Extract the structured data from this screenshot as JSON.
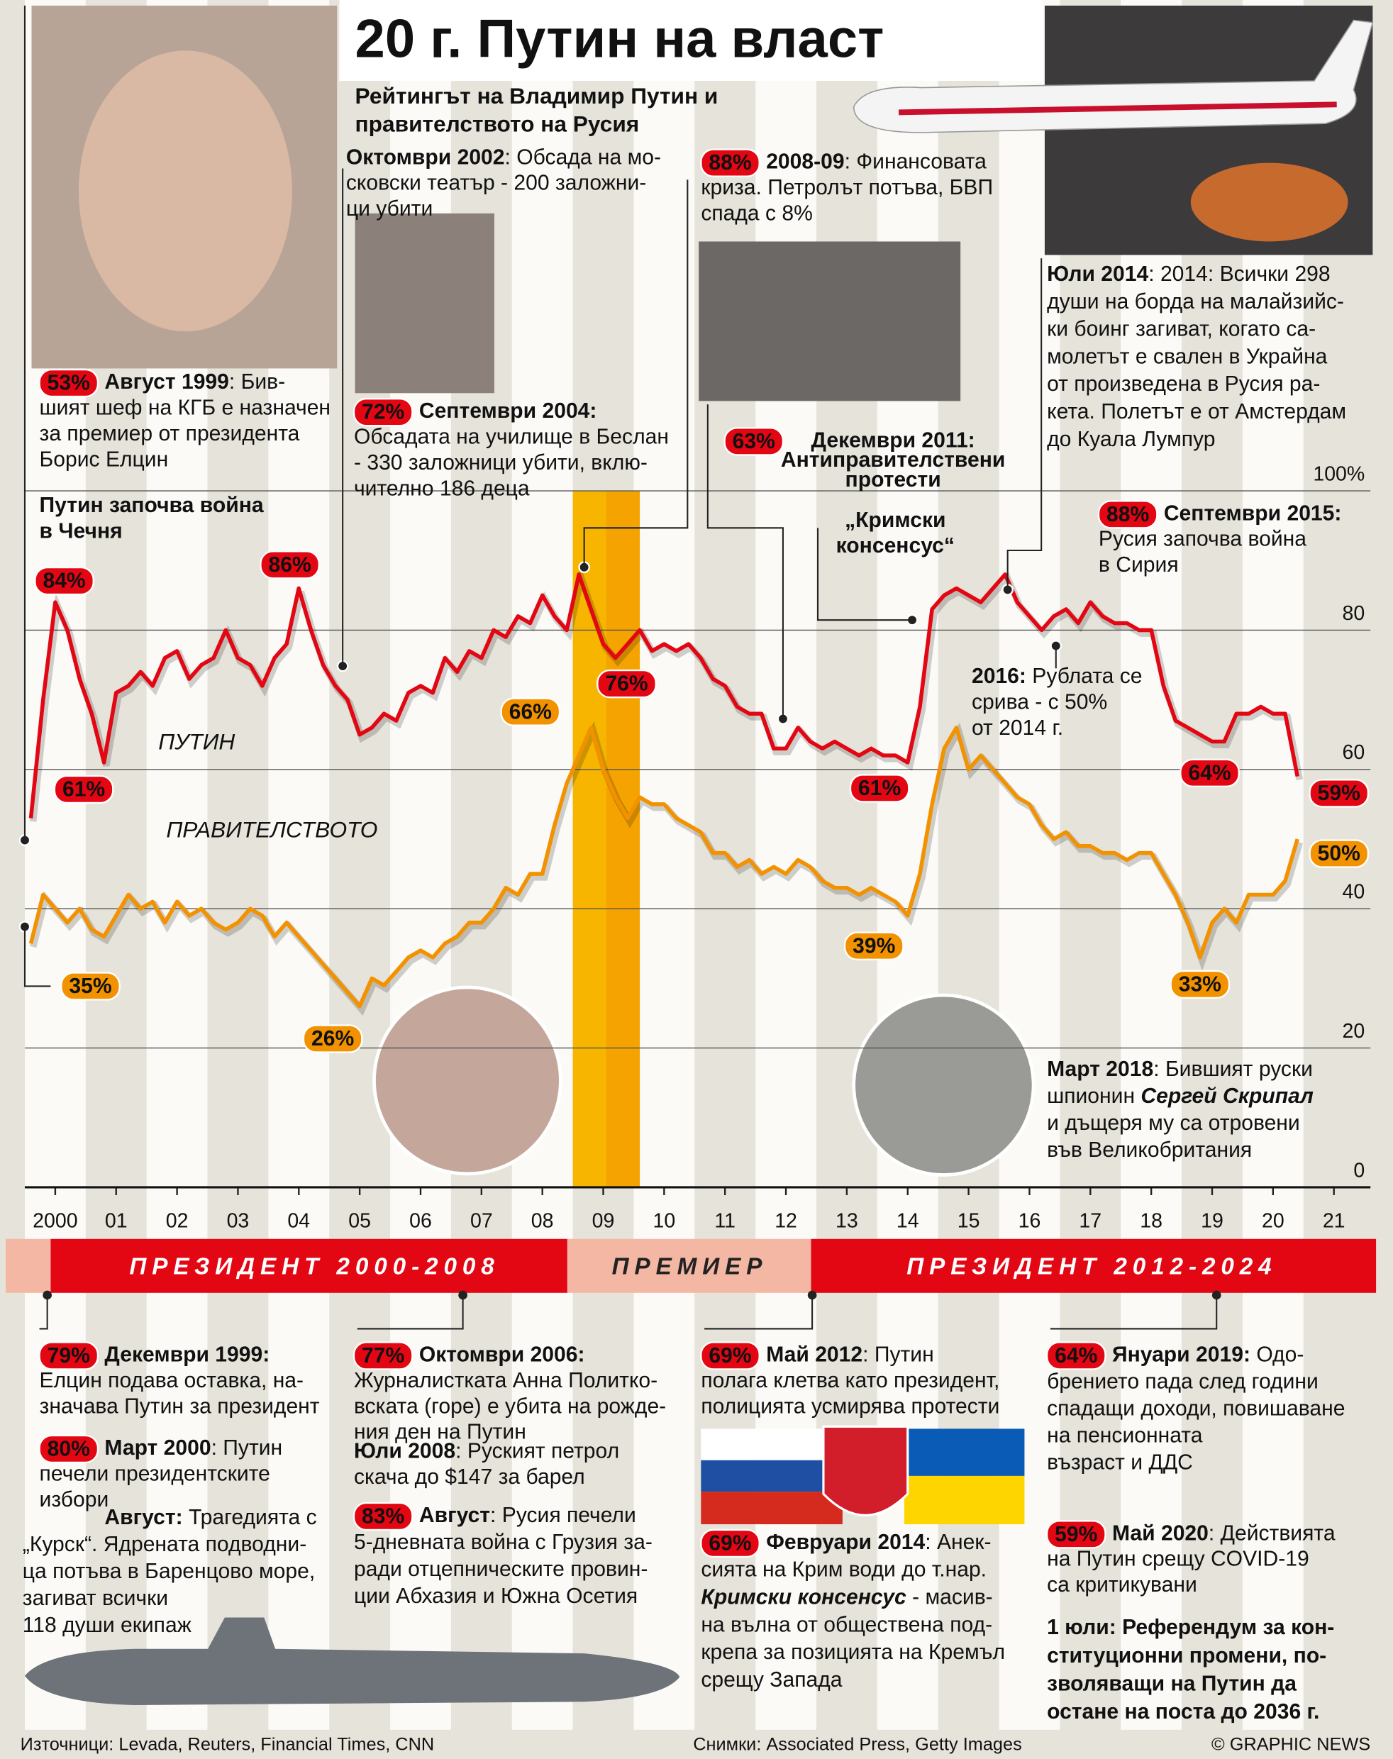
{
  "header": {
    "title": "20 г. Путин на власт",
    "subtitle": [
      "Рейтингът на Владимир Путин и",
      "правителството на Русия"
    ]
  },
  "chart_data": {
    "type": "line",
    "x": [
      1999.6,
      1999.8,
      2000.0,
      2000.2,
      2000.4,
      2000.6,
      2000.8,
      2001.0,
      2001.2,
      2001.4,
      2001.6,
      2001.8,
      2002.0,
      2002.2,
      2002.4,
      2002.6,
      2002.8,
      2003.0,
      2003.2,
      2003.4,
      2003.6,
      2003.8,
      2004.0,
      2004.2,
      2004.4,
      2004.6,
      2004.8,
      2005.0,
      2005.2,
      2005.4,
      2005.6,
      2005.8,
      2006.0,
      2006.2,
      2006.4,
      2006.6,
      2006.8,
      2007.0,
      2007.2,
      2007.4,
      2007.6,
      2007.8,
      2008.0,
      2008.2,
      2008.4,
      2008.6,
      2008.8,
      2009.0,
      2009.2,
      2009.4,
      2009.6,
      2009.8,
      2010.0,
      2010.2,
      2010.4,
      2010.6,
      2010.8,
      2011.0,
      2011.2,
      2011.4,
      2011.6,
      2011.8,
      2012.0,
      2012.2,
      2012.4,
      2012.6,
      2012.8,
      2013.0,
      2013.2,
      2013.4,
      2013.6,
      2013.8,
      2014.0,
      2014.2,
      2014.4,
      2014.6,
      2014.8,
      2015.0,
      2015.2,
      2015.4,
      2015.6,
      2015.8,
      2016.0,
      2016.2,
      2016.4,
      2016.6,
      2016.8,
      2017.0,
      2017.2,
      2017.4,
      2017.6,
      2017.8,
      2018.0,
      2018.2,
      2018.4,
      2018.6,
      2018.8,
      2019.0,
      2019.2,
      2019.4,
      2019.6,
      2019.8,
      2020.0,
      2020.2,
      2020.4
    ],
    "series": [
      {
        "name": "ПУТИН",
        "color": "#e30613",
        "values": [
          53,
          70,
          84,
          80,
          73,
          68,
          61,
          71,
          72,
          74,
          72,
          76,
          77,
          73,
          75,
          76,
          80,
          76,
          75,
          72,
          76,
          78,
          86,
          80,
          75,
          72,
          70,
          65,
          66,
          68,
          67,
          71,
          72,
          71,
          76,
          74,
          77,
          76,
          80,
          79,
          82,
          81,
          85,
          82,
          80,
          88,
          83,
          78,
          76,
          78,
          80,
          77,
          78,
          77,
          78,
          76,
          73,
          72,
          69,
          68,
          68,
          63,
          63,
          66,
          64,
          63,
          64,
          63,
          62,
          63,
          62,
          62,
          61,
          69,
          83,
          85,
          86,
          85,
          84,
          86,
          88,
          84,
          82,
          80,
          82,
          83,
          81,
          84,
          82,
          81,
          81,
          80,
          80,
          72,
          67,
          66,
          65,
          64,
          64,
          68,
          68,
          69,
          68,
          68,
          59
        ],
        "value_labels": [
          null,
          null,
          "84%",
          null,
          null,
          null,
          "61%",
          null,
          null,
          null,
          null,
          null,
          null,
          null,
          null,
          null,
          null,
          null,
          null,
          null,
          null,
          null,
          "86%",
          null,
          null,
          null,
          null,
          null,
          null,
          null,
          null,
          null,
          null,
          null,
          null,
          null,
          null,
          null,
          null,
          null,
          null,
          null,
          null,
          null,
          null,
          null,
          null,
          null,
          "76%",
          null,
          null,
          null,
          null,
          null,
          null,
          null,
          null,
          null,
          null,
          null,
          null,
          null,
          null,
          null,
          null,
          null,
          null,
          null,
          null,
          null,
          null,
          null,
          "61%",
          null,
          null,
          null,
          null,
          null,
          null,
          null,
          null,
          null,
          null,
          null,
          null,
          null,
          null,
          null,
          null,
          null,
          null,
          null,
          null,
          null,
          null,
          null,
          null,
          null,
          "64%",
          null,
          null,
          null,
          null,
          null,
          "59%"
        ]
      },
      {
        "name": "ПРАВИТЕЛСТВОТО",
        "color": "#f39200",
        "values": [
          35,
          42,
          40,
          38,
          40,
          37,
          36,
          39,
          42,
          40,
          41,
          38,
          41,
          39,
          40,
          38,
          37,
          38,
          40,
          39,
          36,
          38,
          36,
          34,
          32,
          30,
          28,
          26,
          30,
          29,
          31,
          33,
          34,
          33,
          35,
          36,
          38,
          38,
          40,
          43,
          42,
          45,
          45,
          52,
          58,
          62,
          66,
          60,
          56,
          53,
          56,
          55,
          55,
          53,
          52,
          51,
          48,
          48,
          46,
          47,
          45,
          46,
          45,
          47,
          46,
          44,
          43,
          43,
          42,
          43,
          42,
          41,
          39,
          45,
          55,
          63,
          66,
          60,
          62,
          60,
          58,
          56,
          55,
          52,
          50,
          51,
          49,
          49,
          48,
          48,
          47,
          48,
          48,
          45,
          42,
          38,
          33,
          38,
          40,
          38,
          42,
          42,
          42,
          44,
          50
        ],
        "value_labels": [
          "35%",
          null,
          null,
          null,
          null,
          null,
          null,
          null,
          null,
          null,
          null,
          null,
          null,
          null,
          null,
          null,
          null,
          null,
          null,
          null,
          null,
          null,
          null,
          null,
          null,
          null,
          null,
          "26%",
          null,
          null,
          null,
          null,
          null,
          null,
          null,
          null,
          null,
          null,
          null,
          null,
          null,
          null,
          null,
          null,
          null,
          null,
          "66%",
          null,
          null,
          null,
          null,
          null,
          null,
          null,
          null,
          null,
          null,
          null,
          null,
          null,
          null,
          null,
          null,
          null,
          null,
          null,
          null,
          null,
          null,
          null,
          null,
          null,
          "39%",
          null,
          null,
          null,
          null,
          null,
          null,
          null,
          null,
          null,
          null,
          null,
          null,
          null,
          null,
          null,
          null,
          null,
          null,
          null,
          null,
          null,
          null,
          null,
          "33%",
          null,
          null,
          null,
          null,
          null,
          null,
          null,
          "50%"
        ]
      }
    ],
    "xlim": [
      1999.5,
      2021.6
    ],
    "xticks": [
      {
        "value": 2000,
        "label": "2000"
      },
      {
        "value": 2001,
        "label": "01"
      },
      {
        "value": 2002,
        "label": "02"
      },
      {
        "value": 2003,
        "label": "03"
      },
      {
        "value": 2004,
        "label": "04"
      },
      {
        "value": 2005,
        "label": "05"
      },
      {
        "value": 2006,
        "label": "06"
      },
      {
        "value": 2007,
        "label": "07"
      },
      {
        "value": 2008,
        "label": "08"
      },
      {
        "value": 2009,
        "label": "09"
      },
      {
        "value": 2010,
        "label": "10"
      },
      {
        "value": 2011,
        "label": "11"
      },
      {
        "value": 2012,
        "label": "12"
      },
      {
        "value": 2013,
        "label": "13"
      },
      {
        "value": 2014,
        "label": "14"
      },
      {
        "value": 2015,
        "label": "15"
      },
      {
        "value": 2016,
        "label": "16"
      },
      {
        "value": 2017,
        "label": "17"
      },
      {
        "value": 2018,
        "label": "18"
      },
      {
        "value": 2019,
        "label": "19"
      },
      {
        "value": 2020,
        "label": "20"
      },
      {
        "value": 2021,
        "label": "21"
      }
    ],
    "ylim": [
      0,
      100
    ],
    "yticks": [
      0,
      20,
      40,
      60,
      80,
      {
        "value": 100,
        "label": "100%"
      }
    ],
    "grid": true,
    "shaded_period": [
      2008.5,
      2009.6
    ]
  },
  "terms": [
    "ПРЕЗИДЕНТ 2000-2008",
    "ПРЕМИЕР",
    "ПРЕЗИДЕНТ 2012-2024"
  ],
  "events": [
    {
      "badge": "53%",
      "heading": "Август 1999",
      "lines": [
        ": Бив-",
        "шият шеф на КГБ е назначен",
        "за премиер от президента",
        "Борис Елцин"
      ]
    },
    {
      "heading_lines": [
        "Путин започва война",
        "в Чечня"
      ]
    },
    {
      "heading": "Октомври 2002",
      "lines": [
        ": Обсада на мо-",
        "сковски театър - 200 заложни-",
        "ци убити"
      ]
    },
    {
      "badge": "72%",
      "heading": "Септември 2004:",
      "lines": [
        "Обсадата на училище в Беслан",
        "- 330 заложници убити, вклю-",
        "чително 186 деца"
      ]
    },
    {
      "badge": "88%",
      "heading": "2008-09",
      "lines": [
        ": Финансовата",
        "криза. Петролът потъва, БВП",
        "спада с 8%"
      ]
    },
    {
      "badge": "63%",
      "heading_lines": [
        "Декември 2011:",
        "Антиправителствени",
        "протести"
      ]
    },
    {
      "heading": "Юли 2014",
      "lines": [
        ": 2014: Всички 298",
        "души на борда на малайзийс-",
        "ки боинг загиват, когато са-",
        "молетът е свален в Украйна",
        "от произведена в Русия ра-",
        "кета. Полетът е от Амстердам",
        "до Куала Лумпур"
      ]
    },
    {
      "heading_lines": [
        "„Кримски",
        "консенсус“"
      ]
    },
    {
      "badge": "88%",
      "heading": "Септември 2015:",
      "lines": [
        "Русия започва война",
        "в Сирия"
      ]
    },
    {
      "heading": "2016:",
      "lines": [
        " Рублата се",
        "срива - с 50%",
        "от 2014 г."
      ]
    },
    {
      "heading": "Март 2018",
      "lines": [
        ": Бившият руски",
        "шпионин ",
        "и дъщеря му са отровени",
        "във Великобритания"
      ],
      "emphasis": "Сергей Скрипал"
    },
    {
      "badge": "79%",
      "heading": "Декември 1999:",
      "lines": [
        "Елцин подава оставка, на-",
        "значава Путин за президент"
      ]
    },
    {
      "badge": "80%",
      "heading": "Март 2000",
      "lines": [
        ": Путин",
        "печели президентските",
        "избори"
      ]
    },
    {
      "heading": "Август:",
      "lines": [
        " Трагедията с",
        "„Курск“. Ядрената подводни-",
        "ца потъва в Баренцово море,",
        "загиват всички",
        "118 души екипаж"
      ]
    },
    {
      "badge": "77%",
      "heading": "Октомври 2006:",
      "lines": [
        "Журналистката Анна Политко-",
        "вската (горе) е убита на рожде-",
        "ния ден на Путин"
      ]
    },
    {
      "heading": "Юли 2008",
      "lines": [
        ": Руският петрол",
        "скача до $147 за барел"
      ]
    },
    {
      "badge": "83%",
      "heading": "Август",
      "lines": [
        ": Русия печели",
        "5-дневната война с Грузия за-",
        "ради отцепническите провин-",
        "ции Абхазия и Южна Осетия"
      ]
    },
    {
      "badge": "69%",
      "heading": "Май 2012",
      "lines": [
        ": Путин",
        "полага клетва като президент,",
        "полицията усмирява протести"
      ]
    },
    {
      "badge": "69%",
      "heading": "Февруари 2014",
      "lines": [
        ": Анек-",
        "сията на Крим води до т.нар.",
        " - масив-",
        "на вълна от обществена под-",
        "крепа за позицията на Кремъл",
        "срещу Запада"
      ],
      "emphasis": "Кримски консенсус"
    },
    {
      "badge": "64%",
      "heading": "Януари 2019:",
      "lines": [
        " Одо-",
        "брението пада след години",
        "спадащи доходи, повишаване",
        "на пенсионната",
        "възраст и ДДС"
      ]
    },
    {
      "badge": "59%",
      "heading": "Май 2020",
      "lines": [
        ": Действията",
        "на Путин срещу COVID-19",
        "са критикувани"
      ]
    },
    {
      "heading_lines": [
        "1 юли: Референдум за кон-",
        "ституционни промени, по-",
        "зволяващи на Путин да",
        "остане на поста до 2036 г."
      ]
    }
  ],
  "footer": {
    "sources": "Източници: Levada, Reuters, Financial Times, CNN",
    "photos": "Снимки: Associated Press, Getty Images",
    "credit": "© GRAPHIC NEWS"
  }
}
